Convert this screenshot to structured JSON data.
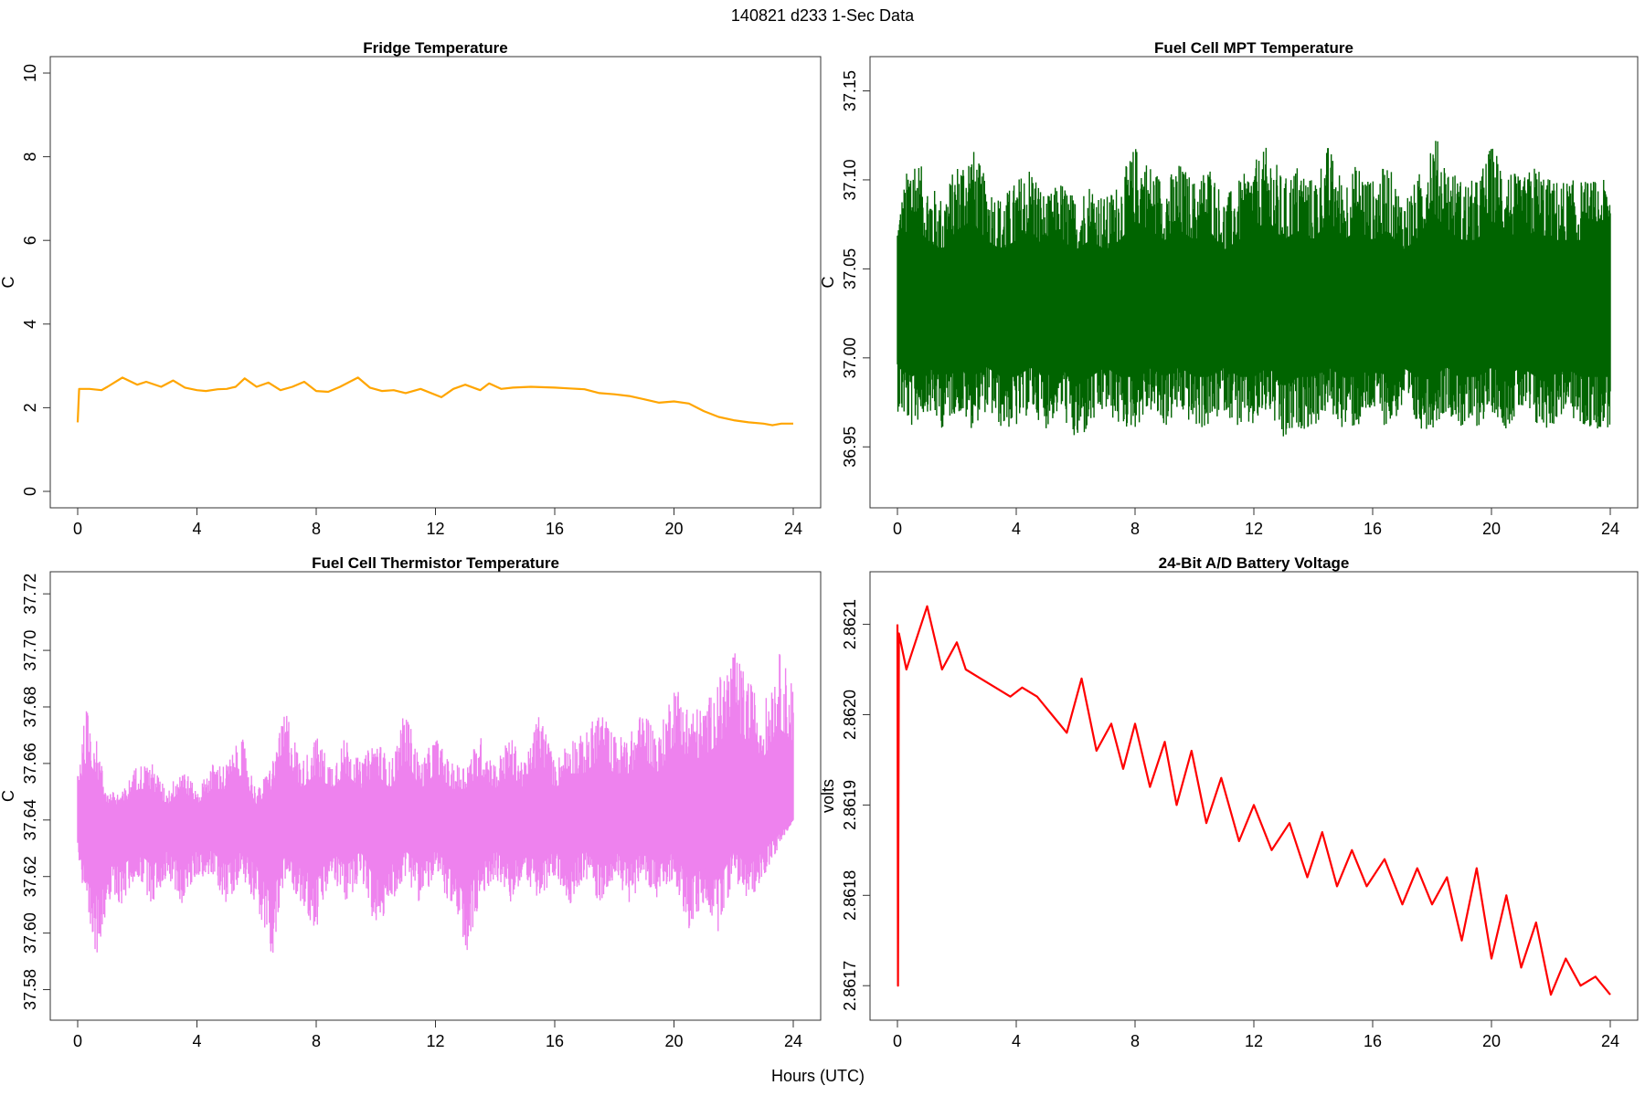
{
  "figure": {
    "title": "140821   d233   1-Sec Data",
    "xlabel": "Hours (UTC)"
  },
  "chart_data": [
    {
      "type": "line",
      "title": "Fridge Temperature",
      "xlabel": "",
      "ylabel": "C",
      "xlim": [
        0,
        24
      ],
      "ylim": [
        0,
        10
      ],
      "xticks": [
        "0",
        "4",
        "8",
        "12",
        "16",
        "20",
        "24"
      ],
      "xtick_values": [
        0,
        4,
        8,
        12,
        16,
        20,
        24
      ],
      "yticks": [
        "0",
        "2",
        "4",
        "6",
        "8",
        "10"
      ],
      "ytick_values": [
        0,
        2,
        4,
        6,
        8,
        10
      ],
      "color": "#FFA500",
      "band": false,
      "x": [
        0,
        0.05,
        0.4,
        0.8,
        1.0,
        1.5,
        2.0,
        2.3,
        2.8,
        3.2,
        3.6,
        4.0,
        4.3,
        4.7,
        5.0,
        5.3,
        5.6,
        6.0,
        6.4,
        6.8,
        7.2,
        7.6,
        8.0,
        8.4,
        8.8,
        9.4,
        9.8,
        10.2,
        10.6,
        11.0,
        11.5,
        12.2,
        12.6,
        13.0,
        13.5,
        13.8,
        14.2,
        14.6,
        15.2,
        16.0,
        16.5,
        17.0,
        17.5,
        18.0,
        18.5,
        19.0,
        19.5,
        20.0,
        20.5,
        21.0,
        21.5,
        22.0,
        22.5,
        23.0,
        23.3,
        23.6,
        24.0
      ],
      "y": [
        1.65,
        2.45,
        2.45,
        2.42,
        2.5,
        2.72,
        2.55,
        2.62,
        2.5,
        2.65,
        2.48,
        2.42,
        2.4,
        2.44,
        2.45,
        2.5,
        2.7,
        2.5,
        2.6,
        2.42,
        2.5,
        2.62,
        2.4,
        2.38,
        2.5,
        2.72,
        2.48,
        2.4,
        2.42,
        2.35,
        2.45,
        2.25,
        2.45,
        2.55,
        2.42,
        2.58,
        2.45,
        2.48,
        2.5,
        2.48,
        2.46,
        2.44,
        2.35,
        2.32,
        2.28,
        2.2,
        2.12,
        2.15,
        2.1,
        1.92,
        1.78,
        1.7,
        1.65,
        1.62,
        1.58,
        1.62,
        1.62
      ]
    },
    {
      "type": "line",
      "title": "Fuel Cell MPT Temperature",
      "xlabel": "",
      "ylabel": "C",
      "xlim": [
        0,
        24
      ],
      "ylim": [
        36.925,
        37.16
      ],
      "xticks": [
        "0",
        "4",
        "8",
        "12",
        "16",
        "20",
        "24"
      ],
      "xtick_values": [
        0,
        4,
        8,
        12,
        16,
        20,
        24
      ],
      "yticks": [
        "36.95",
        "37.00",
        "37.05",
        "37.10",
        "37.15"
      ],
      "ytick_values": [
        36.95,
        37.0,
        37.05,
        37.1,
        37.15
      ],
      "color": "#006400",
      "band": true,
      "x": [
        0,
        0.5,
        1,
        1.5,
        2,
        2.5,
        3,
        3.5,
        4,
        4.5,
        5,
        5.5,
        6,
        6.5,
        7,
        7.5,
        8,
        8.5,
        9,
        9.5,
        10,
        10.5,
        11,
        11.5,
        12,
        12.5,
        13,
        13.5,
        14,
        14.5,
        15,
        15.5,
        16,
        16.5,
        17,
        17.5,
        18,
        18.5,
        19,
        19.5,
        20,
        20.5,
        21,
        21.5,
        22,
        22.5,
        23,
        23.5,
        24
      ],
      "upper": [
        37.08,
        37.12,
        37.1,
        37.09,
        37.11,
        37.12,
        37.1,
        37.09,
        37.1,
        37.11,
        37.09,
        37.1,
        37.09,
        37.1,
        37.09,
        37.1,
        37.12,
        37.11,
        37.1,
        37.11,
        37.1,
        37.11,
        37.09,
        37.1,
        37.11,
        37.12,
        37.1,
        37.11,
        37.1,
        37.12,
        37.1,
        37.11,
        37.1,
        37.11,
        37.09,
        37.1,
        37.13,
        37.11,
        37.1,
        37.1,
        37.12,
        37.11,
        37.1,
        37.11,
        37.1,
        37.1,
        37.1,
        37.1,
        37.1
      ],
      "lower": [
        36.97,
        36.96,
        36.97,
        36.96,
        36.97,
        36.96,
        36.97,
        36.96,
        36.96,
        36.97,
        36.96,
        36.97,
        36.95,
        36.96,
        36.97,
        36.96,
        36.96,
        36.97,
        36.96,
        36.97,
        36.96,
        36.96,
        36.97,
        36.96,
        36.96,
        36.97,
        36.95,
        36.96,
        36.96,
        36.97,
        36.96,
        36.96,
        36.97,
        36.96,
        36.97,
        36.96,
        36.96,
        36.97,
        36.96,
        36.96,
        36.97,
        36.96,
        36.97,
        36.96,
        36.96,
        36.97,
        36.96,
        36.96,
        36.96
      ],
      "center": 37.025
    },
    {
      "type": "line",
      "title": "Fuel Cell Thermistor Temperature",
      "xlabel": "",
      "ylabel": "C",
      "xlim": [
        0,
        24
      ],
      "ylim": [
        37.575,
        37.722
      ],
      "xticks": [
        "0",
        "4",
        "8",
        "12",
        "16",
        "20",
        "24"
      ],
      "xtick_values": [
        0,
        4,
        8,
        12,
        16,
        20,
        24
      ],
      "yticks": [
        "37.58",
        "37.60",
        "37.62",
        "37.64",
        "37.66",
        "37.68",
        "37.70",
        "37.72"
      ],
      "ytick_values": [
        37.58,
        37.6,
        37.62,
        37.64,
        37.66,
        37.68,
        37.7,
        37.72
      ],
      "color": "#EE82EE",
      "band": true,
      "x": [
        0,
        0.3,
        0.6,
        1,
        1.5,
        2,
        2.5,
        3,
        3.5,
        4,
        4.5,
        5,
        5.5,
        6,
        6.5,
        7,
        7.5,
        8,
        8.5,
        9,
        9.5,
        10,
        10.5,
        11,
        11.5,
        12,
        12.5,
        13,
        13.5,
        14,
        14.5,
        15,
        15.5,
        16,
        16.5,
        17,
        17.5,
        18,
        18.5,
        19,
        19.5,
        20,
        20.5,
        21,
        21.5,
        22,
        22.5,
        23,
        23.5,
        24
      ],
      "upper": [
        37.66,
        37.68,
        37.67,
        37.65,
        37.65,
        37.66,
        37.66,
        37.65,
        37.66,
        37.65,
        37.66,
        37.66,
        37.67,
        37.65,
        37.66,
        37.68,
        37.66,
        37.67,
        37.66,
        37.67,
        37.66,
        37.67,
        37.66,
        37.68,
        37.66,
        37.67,
        37.66,
        37.66,
        37.67,
        37.66,
        37.67,
        37.66,
        37.68,
        37.66,
        37.67,
        37.67,
        37.68,
        37.67,
        37.67,
        37.68,
        37.67,
        37.69,
        37.68,
        37.68,
        37.69,
        37.7,
        37.69,
        37.68,
        37.7,
        37.69
      ],
      "lower": [
        37.63,
        37.6,
        37.59,
        37.61,
        37.61,
        37.62,
        37.61,
        37.62,
        37.61,
        37.62,
        37.62,
        37.61,
        37.62,
        37.61,
        37.59,
        37.62,
        37.61,
        37.6,
        37.62,
        37.61,
        37.62,
        37.6,
        37.61,
        37.62,
        37.61,
        37.62,
        37.61,
        37.59,
        37.61,
        37.62,
        37.61,
        37.62,
        37.61,
        37.62,
        37.61,
        37.62,
        37.61,
        37.62,
        37.61,
        37.62,
        37.61,
        37.62,
        37.6,
        37.61,
        37.6,
        37.62,
        37.61,
        37.62,
        37.63,
        37.64
      ],
      "center": 37.64
    },
    {
      "type": "line",
      "title": "24-Bit A/D Battery Voltage",
      "xlabel": "",
      "ylabel": "volts",
      "xlim": [
        0,
        24
      ],
      "ylim": [
        2.86168,
        2.86214
      ],
      "xticks": [
        "0",
        "4",
        "8",
        "12",
        "16",
        "20",
        "24"
      ],
      "xtick_values": [
        0,
        4,
        8,
        12,
        16,
        20,
        24
      ],
      "yticks": [
        "2.8617",
        "2.8618",
        "2.8619",
        "2.8620",
        "2.8621"
      ],
      "ytick_values": [
        2.8617,
        2.8618,
        2.8619,
        2.862,
        2.8621
      ],
      "color": "#FF0000",
      "band": false,
      "x": [
        0,
        0.02,
        0.05,
        0.3,
        0.5,
        1.0,
        1.5,
        2.0,
        2.3,
        2.8,
        3.3,
        3.8,
        4.2,
        4.7,
        5.2,
        5.7,
        6.2,
        6.7,
        7.2,
        7.6,
        8.0,
        8.5,
        9.0,
        9.4,
        9.9,
        10.4,
        10.9,
        11.5,
        12.0,
        12.6,
        13.2,
        13.8,
        14.3,
        14.8,
        15.3,
        15.8,
        16.4,
        17.0,
        17.5,
        18.0,
        18.5,
        19.0,
        19.5,
        20.0,
        20.5,
        21.0,
        21.5,
        22.0,
        22.5,
        23.0,
        23.5,
        24.0
      ],
      "y": [
        2.8621,
        2.8617,
        2.86209,
        2.86205,
        2.86207,
        2.86212,
        2.86205,
        2.86208,
        2.86205,
        2.86204,
        2.86203,
        2.86202,
        2.86203,
        2.86202,
        2.862,
        2.86198,
        2.86204,
        2.86196,
        2.86199,
        2.86194,
        2.86199,
        2.86192,
        2.86197,
        2.8619,
        2.86196,
        2.86188,
        2.86193,
        2.86186,
        2.8619,
        2.86185,
        2.86188,
        2.86182,
        2.86187,
        2.86181,
        2.86185,
        2.86181,
        2.86184,
        2.86179,
        2.86183,
        2.86179,
        2.86182,
        2.86175,
        2.86183,
        2.86173,
        2.8618,
        2.86172,
        2.86177,
        2.86169,
        2.86173,
        2.8617,
        2.86171,
        2.86169
      ]
    }
  ]
}
